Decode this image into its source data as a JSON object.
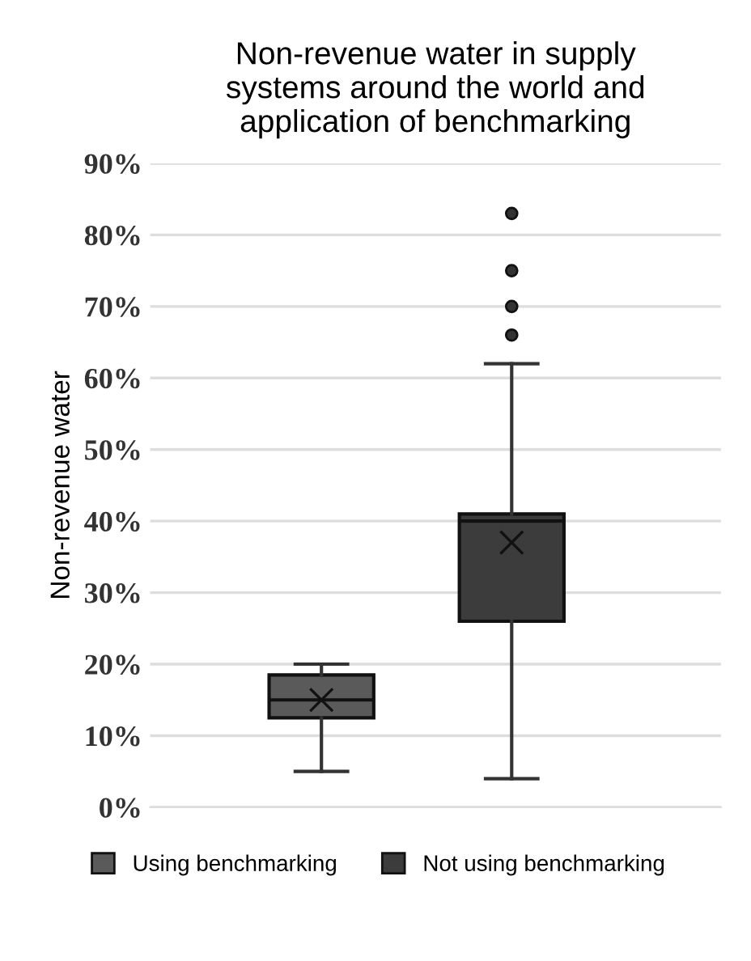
{
  "chart_data": {
    "type": "box",
    "title": "Non-revenue water in supply\nsystems around the world and\napplication of benchmarking",
    "ylabel": "Non-revenue water",
    "categories": [
      null,
      null
    ],
    "series": [
      {
        "name": "Using benchmarking",
        "color": "#5a5a5a",
        "boxes": [
          {
            "low": 5,
            "q1": 12.5,
            "median": 15,
            "q3": 18.5,
            "high": 20,
            "mean": 15
          },
          null
        ]
      },
      {
        "name": "Not using benchmarking",
        "color": "#3c3c3c",
        "boxes": [
          null,
          {
            "low": 4,
            "q1": 26,
            "median": 40,
            "q3": 41,
            "high": 62,
            "mean": 37,
            "outliers": [
              66,
              70,
              75,
              83
            ]
          }
        ]
      }
    ],
    "ylim": [
      0,
      90
    ],
    "yticks": [
      {
        "value": 0,
        "label": "0%"
      },
      {
        "value": 10,
        "label": "10%"
      },
      {
        "value": 20,
        "label": "20%"
      },
      {
        "value": 30,
        "label": "30%"
      },
      {
        "value": 40,
        "label": "40%"
      },
      {
        "value": 50,
        "label": "50%"
      },
      {
        "value": 60,
        "label": "60%"
      },
      {
        "value": 70,
        "label": "70%"
      },
      {
        "value": 80,
        "label": "80%"
      },
      {
        "value": 90,
        "label": "90%"
      }
    ],
    "grid": "y",
    "legend": "bottom",
    "marker": "cross"
  }
}
